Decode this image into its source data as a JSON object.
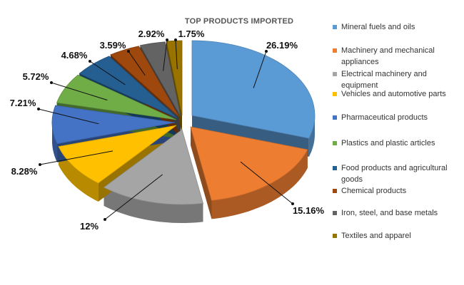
{
  "chart_data": {
    "type": "pie",
    "title": "TOP PRODUCTS IMPORTED",
    "legend_position": "right",
    "style": "3d-exploded",
    "slices": [
      {
        "name": "Mineral fuels and oils",
        "value": 26.19,
        "label": "26.19%",
        "color": "#5b9bd5"
      },
      {
        "name": "Machinery and mechanical appliances",
        "value": 15.16,
        "label": "15.16%",
        "color": "#ed7d31"
      },
      {
        "name": "Electrical machinery and equipment",
        "value": 12,
        "label": "12%",
        "color": "#a5a5a5"
      },
      {
        "name": "Vehicles and automotive parts",
        "value": 8.28,
        "label": "8.28%",
        "color": "#ffc000"
      },
      {
        "name": "Pharmaceutical products",
        "value": 7.21,
        "label": "7.21%",
        "color": "#4472c4"
      },
      {
        "name": "Plastics and plastic articles",
        "value": 5.72,
        "label": "5.72%",
        "color": "#70ad47"
      },
      {
        "name": "Food products and agricultural goods",
        "value": 4.68,
        "label": "4.68%",
        "color": "#255e91"
      },
      {
        "name": "Chemical products",
        "value": 3.59,
        "label": "3.59%",
        "color": "#9e480e"
      },
      {
        "name": "Iron, steel, and base metals",
        "value": 2.92,
        "label": "2.92%",
        "color": "#636363"
      },
      {
        "name": "Textiles and apparel",
        "value": 1.75,
        "label": "1.75%",
        "color": "#997300"
      }
    ]
  }
}
